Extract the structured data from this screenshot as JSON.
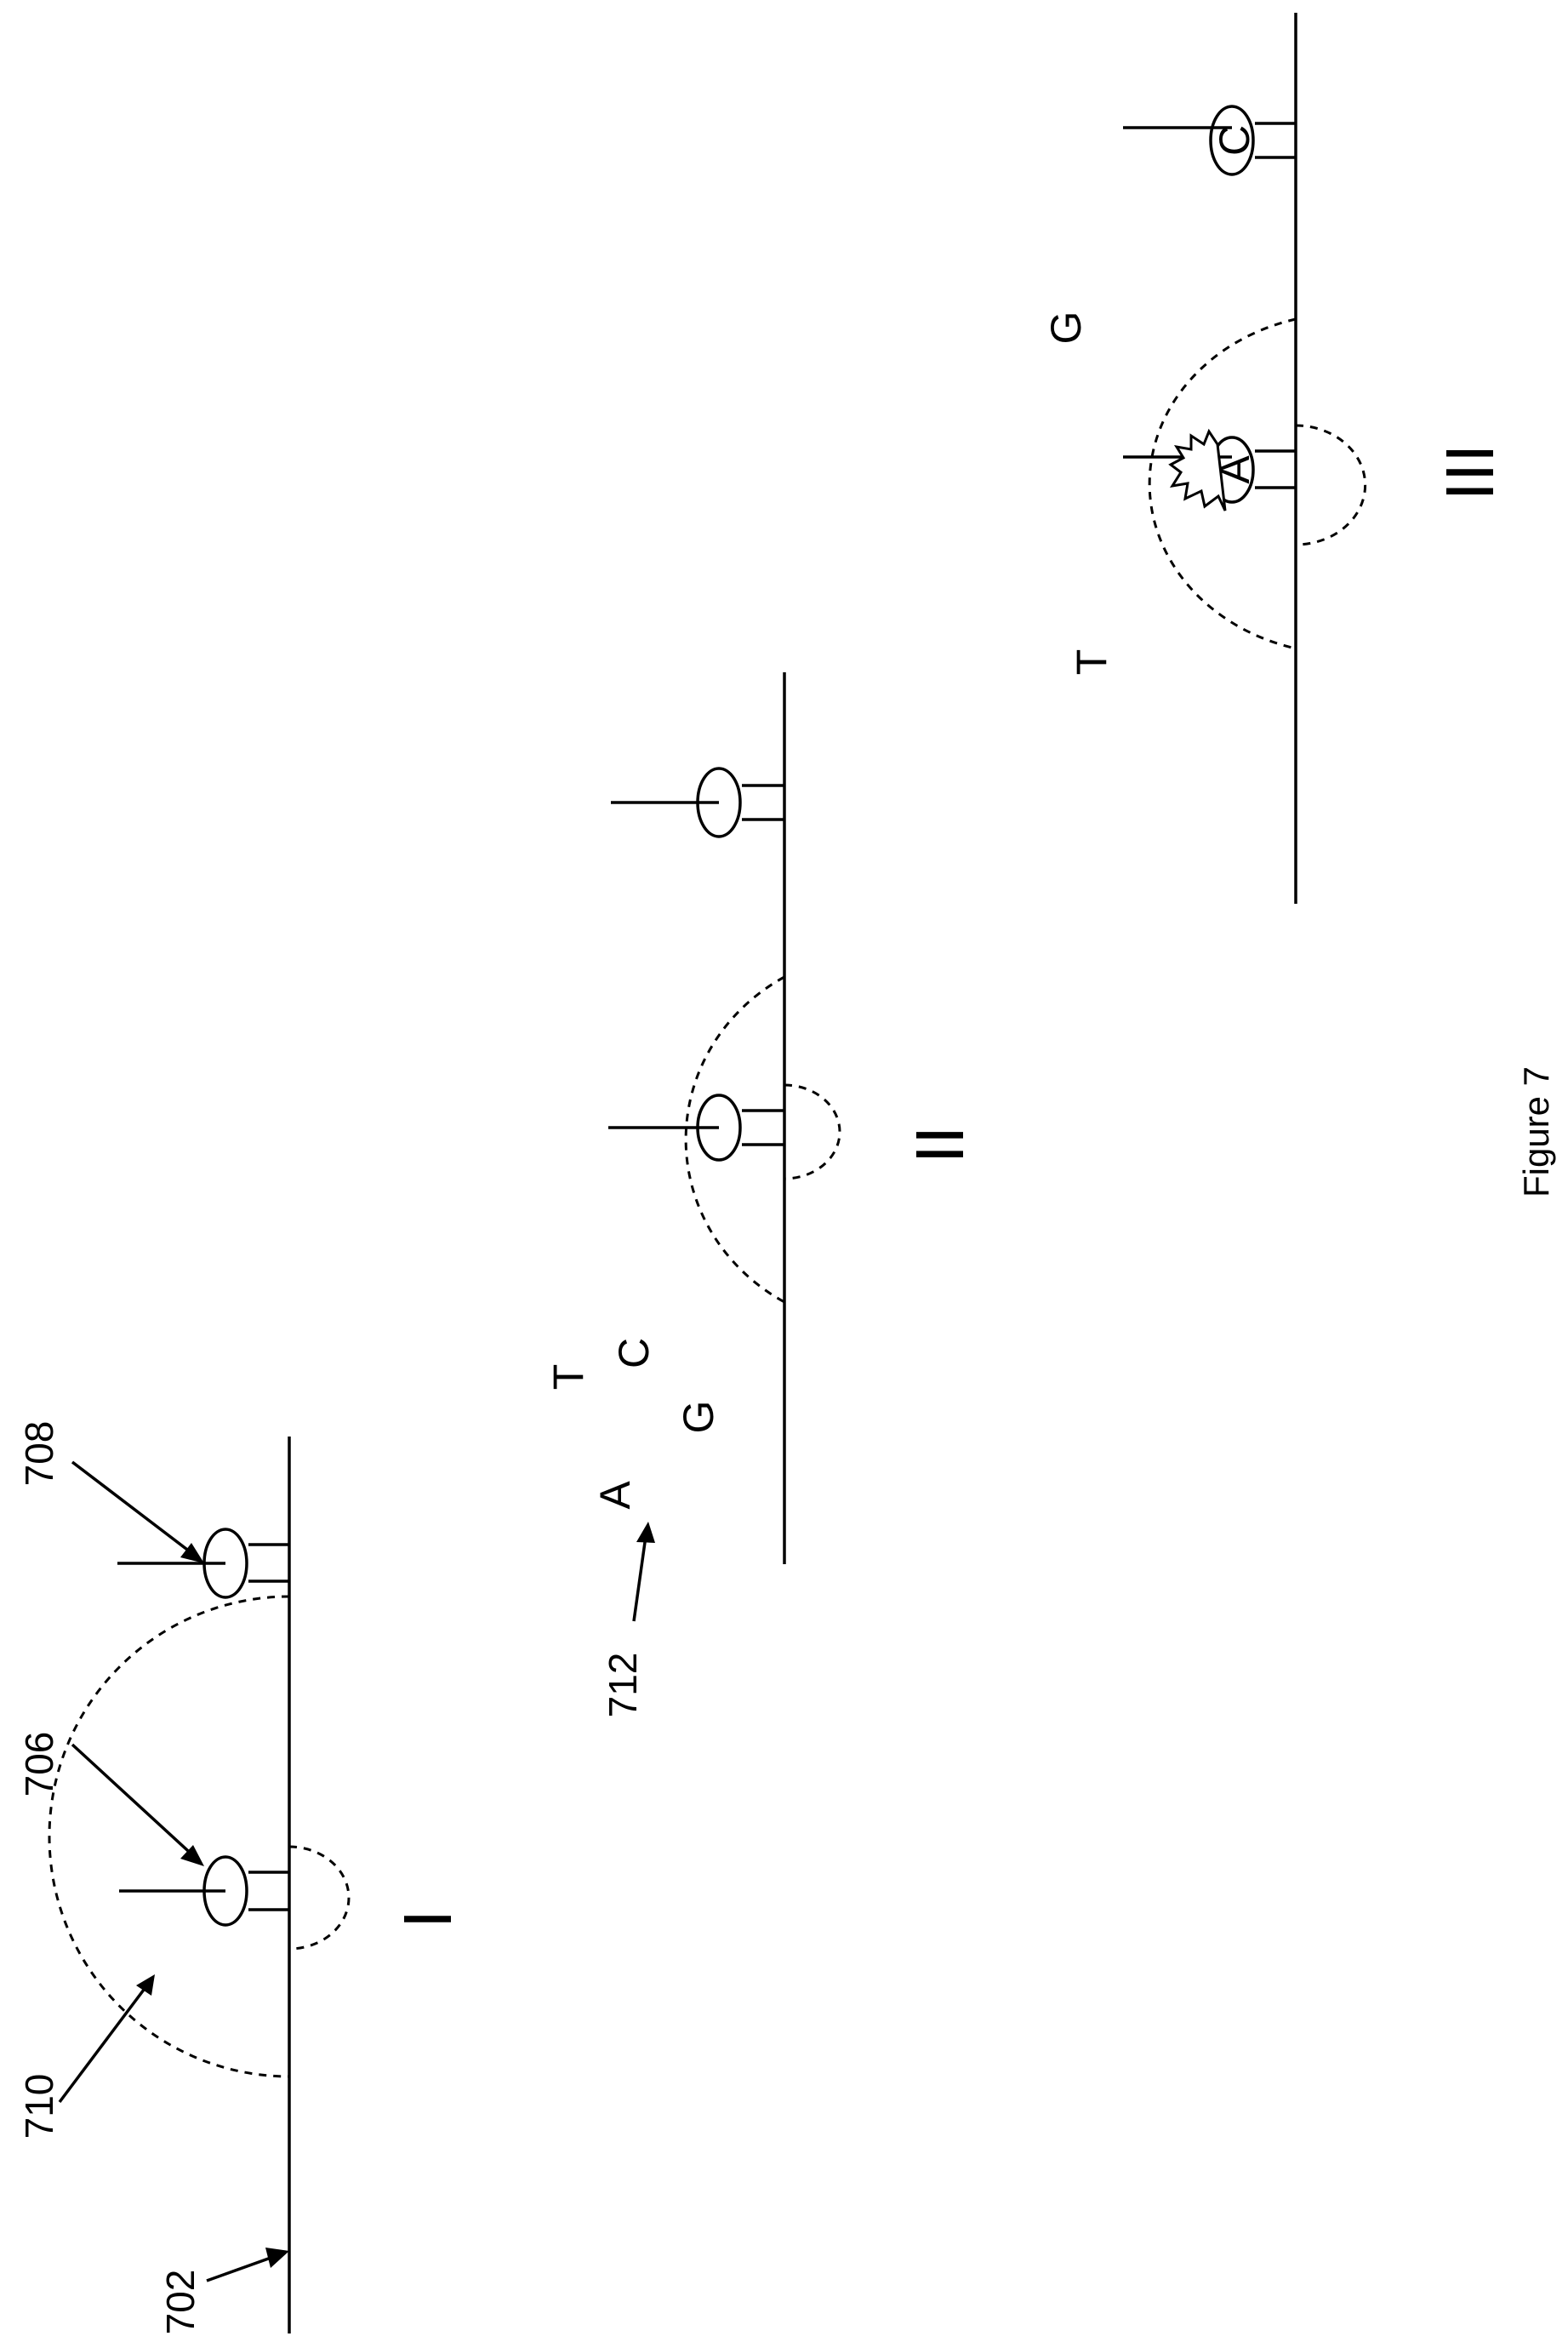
{
  "figure": {
    "caption": "Figure 7",
    "panels": [
      "I",
      "II",
      "III"
    ],
    "references": {
      "substrate": "702",
      "first_molecule": "706",
      "second_molecule": "708",
      "field": "710",
      "nucleotides": "712"
    },
    "panel2_nucleotides": [
      "A",
      "T",
      "C",
      "G"
    ],
    "panel3_nucleotides": [
      "T",
      "G"
    ],
    "panel3_incorporated": "A",
    "panel3_second_molecule_mark": "C"
  }
}
